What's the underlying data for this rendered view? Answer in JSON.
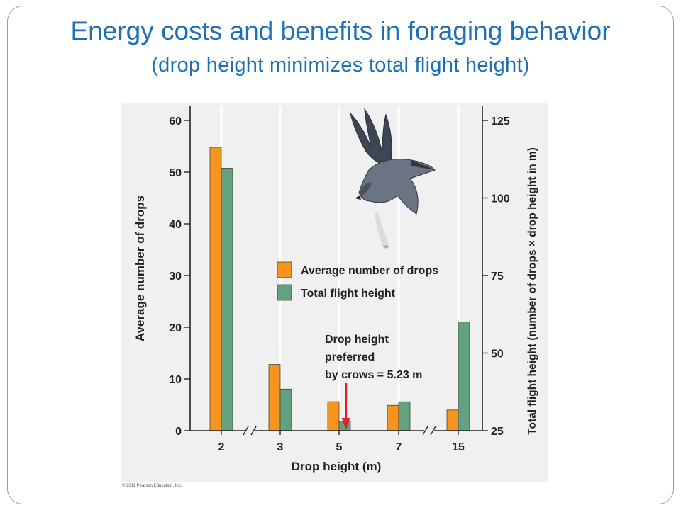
{
  "slide": {
    "title": "Energy costs and benefits in foraging behavior",
    "subtitle": "(drop height minimizes total flight height)",
    "copyright": "© 2011 Pearson Education, Inc."
  },
  "chart_data": {
    "type": "bar",
    "categories": [
      "2",
      "3",
      "5",
      "7",
      "15"
    ],
    "xlabel": "Drop height (m)",
    "ylabel": "Average number of drops",
    "y2label": "Total flight height (number of drops × drop height in m)",
    "ylim": [
      0,
      60
    ],
    "y2lim": [
      25,
      125
    ],
    "yticks": [
      "0",
      "10",
      "20",
      "30",
      "40",
      "50",
      "60"
    ],
    "y2ticks": [
      "25",
      "50",
      "75",
      "100",
      "125"
    ],
    "series": [
      {
        "name": "Average number of drops",
        "axis": "left",
        "color": "#f7941d",
        "values": [
          54.8,
          12.8,
          5.6,
          4.9,
          4.0
        ]
      },
      {
        "name": "Total flight height",
        "axis": "right",
        "color": "#62a27f",
        "values": [
          109.6,
          38.4,
          28.0,
          34.3,
          60.0
        ]
      }
    ],
    "annotation": {
      "lines": [
        "Drop height",
        "preferred",
        "by crows = 5.23 m"
      ],
      "value": 5.23,
      "arrow_color": "#e3202e"
    },
    "legend": "middle-right",
    "grid": "vertical",
    "axis_breaks": [
      "2-3",
      "7-15"
    ],
    "background": "#f0f0f0"
  }
}
